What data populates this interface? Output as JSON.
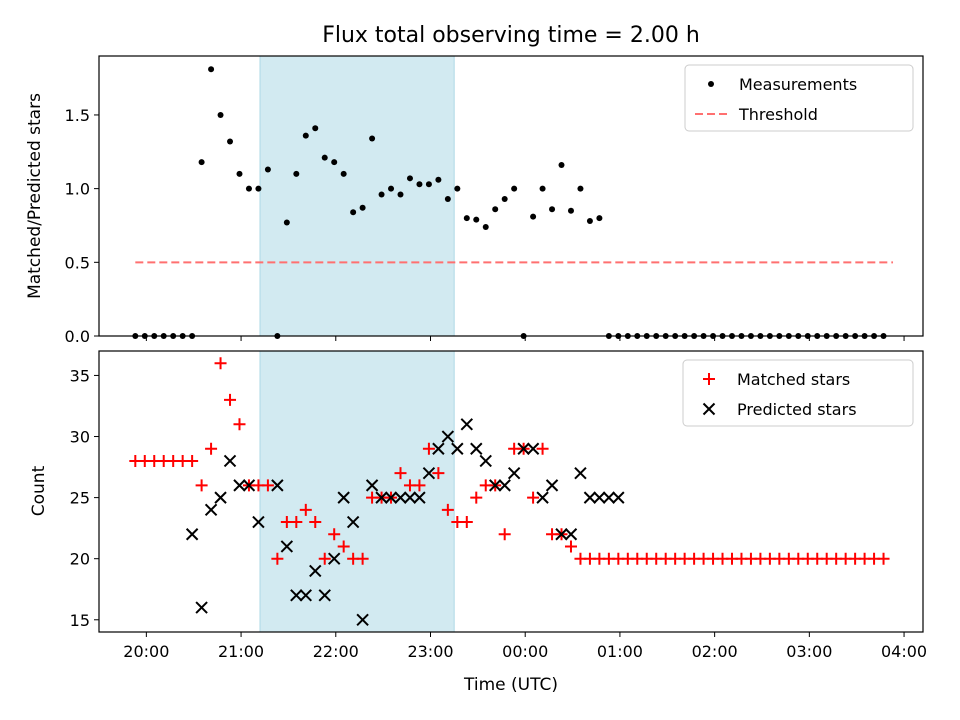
{
  "chart_data": [
    {
      "type": "scatter",
      "title": "Flux total observing time = 2.00 h",
      "xlabel": "",
      "ylabel": "Matched/Predicted stars",
      "x_is_time": true,
      "xlim": [
        "19:30",
        "04:12"
      ],
      "ylim": [
        0,
        1.9
      ],
      "yticks": [
        "0.0",
        "0.5",
        "1.0",
        "1.5"
      ],
      "ytick_values": [
        0,
        0.5,
        1.0,
        1.5
      ],
      "highlight_span": {
        "start": "21:12",
        "end": "23:15",
        "color": "#add8e6"
      },
      "legend": {
        "position": "top-right",
        "entries": [
          "Measurements",
          "Threshold"
        ]
      },
      "series": [
        {
          "name": "Measurements",
          "marker": "dot",
          "color": "#000000",
          "x": [
            "19:53",
            "19:59",
            "20:05",
            "20:11",
            "20:17",
            "20:23",
            "20:29",
            "20:35",
            "20:41",
            "20:47",
            "20:53",
            "20:59",
            "21:05",
            "21:11",
            "21:17",
            "21:23",
            "21:29",
            "21:35",
            "21:41",
            "21:47",
            "21:53",
            "21:59",
            "22:05",
            "22:11",
            "22:17",
            "22:23",
            "22:29",
            "22:35",
            "22:41",
            "22:47",
            "22:53",
            "22:59",
            "23:05",
            "23:11",
            "23:17",
            "23:23",
            "23:29",
            "23:35",
            "23:41",
            "23:47",
            "23:53",
            "23:59",
            "00:05",
            "00:11",
            "00:17",
            "00:23",
            "00:29",
            "00:35",
            "00:41",
            "00:47",
            "00:53",
            "00:59",
            "01:05",
            "01:11",
            "01:17",
            "01:23",
            "01:29",
            "01:35",
            "01:41",
            "01:47",
            "01:53",
            "01:59",
            "02:05",
            "02:11",
            "02:17",
            "02:23",
            "02:29",
            "02:35",
            "02:41",
            "02:47",
            "02:53",
            "02:59",
            "03:05",
            "03:11",
            "03:17",
            "03:23",
            "03:29",
            "03:35",
            "03:41",
            "03:47"
          ],
          "y": [
            0,
            0,
            0,
            0,
            0,
            0,
            0,
            1.18,
            1.81,
            1.5,
            1.32,
            1.1,
            1.0,
            1.0,
            1.13,
            0,
            0.77,
            1.1,
            1.36,
            1.41,
            1.21,
            1.18,
            1.1,
            0.84,
            0.87,
            1.34,
            0.96,
            1.0,
            0.96,
            1.07,
            1.03,
            1.03,
            1.06,
            0.93,
            1.0,
            0.8,
            0.79,
            0.74,
            0.86,
            0.93,
            1.0,
            0,
            0.81,
            1.0,
            0.86,
            1.16,
            0.85,
            1.0,
            0.78,
            0.8,
            0,
            0,
            0,
            0,
            0,
            0,
            0,
            0,
            0,
            0,
            0,
            0,
            0,
            0,
            0,
            0,
            0,
            0,
            0,
            0,
            0,
            0,
            0,
            0,
            0,
            0,
            0,
            0,
            0,
            0
          ]
        },
        {
          "name": "Threshold",
          "style": "dashed",
          "color": "#ff7070",
          "x": [
            "19:53",
            "03:53"
          ],
          "y": [
            0.5,
            0.5
          ]
        }
      ]
    },
    {
      "type": "scatter",
      "title": "",
      "xlabel": "Time (UTC)",
      "ylabel": "Count",
      "x_is_time": true,
      "xlim": [
        "19:30",
        "04:12"
      ],
      "ylim": [
        14,
        37
      ],
      "yticks": [
        "15",
        "20",
        "25",
        "30",
        "35"
      ],
      "ytick_values": [
        15,
        20,
        25,
        30,
        35
      ],
      "xticks": [
        "20:00",
        "21:00",
        "22:00",
        "23:00",
        "00:00",
        "01:00",
        "02:00",
        "03:00",
        "04:00"
      ],
      "highlight_span": {
        "start": "21:12",
        "end": "23:15",
        "color": "#add8e6"
      },
      "legend": {
        "position": "top-right",
        "entries": [
          "Matched stars",
          "Predicted stars"
        ]
      },
      "series": [
        {
          "name": "Matched stars",
          "marker": "plus",
          "color": "#ff0000",
          "x": [
            "19:53",
            "19:59",
            "20:05",
            "20:11",
            "20:17",
            "20:23",
            "20:29",
            "20:35",
            "20:41",
            "20:47",
            "20:53",
            "20:59",
            "21:05",
            "21:11",
            "21:17",
            "21:23",
            "21:29",
            "21:35",
            "21:41",
            "21:47",
            "21:53",
            "21:59",
            "22:05",
            "22:11",
            "22:17",
            "22:23",
            "22:29",
            "22:35",
            "22:41",
            "22:47",
            "22:53",
            "22:59",
            "23:05",
            "23:11",
            "23:17",
            "23:23",
            "23:29",
            "23:35",
            "23:41",
            "23:47",
            "23:53",
            "23:59",
            "00:05",
            "00:11",
            "00:17",
            "00:23",
            "00:29",
            "00:35",
            "00:41",
            "00:47",
            "00:53",
            "00:59",
            "01:05",
            "01:11",
            "01:17",
            "01:23",
            "01:29",
            "01:35",
            "01:41",
            "01:47",
            "01:53",
            "01:59",
            "02:05",
            "02:11",
            "02:17",
            "02:23",
            "02:29",
            "02:35",
            "02:41",
            "02:47",
            "02:53",
            "02:59",
            "03:05",
            "03:11",
            "03:17",
            "03:23",
            "03:29",
            "03:35",
            "03:41",
            "03:47"
          ],
          "y": [
            28,
            28,
            28,
            28,
            28,
            28,
            28,
            26,
            29,
            36,
            33,
            31,
            26,
            26,
            26,
            20,
            23,
            23,
            24,
            23,
            20,
            22,
            21,
            20,
            20,
            25,
            25,
            25,
            27,
            26,
            26,
            29,
            27,
            24,
            23,
            23,
            25,
            26,
            26,
            22,
            29,
            29,
            25,
            29,
            22,
            22,
            21,
            20,
            20,
            20,
            20,
            20,
            20,
            20,
            20,
            20,
            20,
            20,
            20,
            20,
            20,
            20,
            20,
            20,
            20,
            20,
            20,
            20,
            20,
            20,
            20,
            20,
            20,
            20,
            20,
            20,
            20,
            20,
            20,
            20
          ]
        },
        {
          "name": "Predicted stars",
          "marker": "x",
          "color": "#000000",
          "x": [
            "20:29",
            "20:35",
            "20:41",
            "20:47",
            "20:53",
            "20:59",
            "21:05",
            "21:11",
            "21:23",
            "21:29",
            "21:35",
            "21:41",
            "21:47",
            "21:53",
            "21:59",
            "22:05",
            "22:11",
            "22:17",
            "22:23",
            "22:29",
            "22:35",
            "22:41",
            "22:47",
            "22:53",
            "22:59",
            "23:05",
            "23:11",
            "23:17",
            "23:23",
            "23:29",
            "23:35",
            "23:41",
            "23:47",
            "23:53",
            "23:59",
            "00:05",
            "00:11",
            "00:17",
            "00:23",
            "00:29",
            "00:35",
            "00:41",
            "00:47",
            "00:53",
            "00:59"
          ],
          "y": [
            22,
            16,
            24,
            25,
            28,
            26,
            26,
            23,
            26,
            21,
            17,
            17,
            19,
            17,
            20,
            25,
            23,
            15,
            26,
            25,
            25,
            25,
            25,
            25,
            27,
            29,
            30,
            29,
            31,
            29,
            28,
            26,
            26,
            27,
            29,
            29,
            25,
            26,
            22,
            22,
            27,
            25,
            25,
            25,
            25
          ]
        }
      ]
    }
  ]
}
